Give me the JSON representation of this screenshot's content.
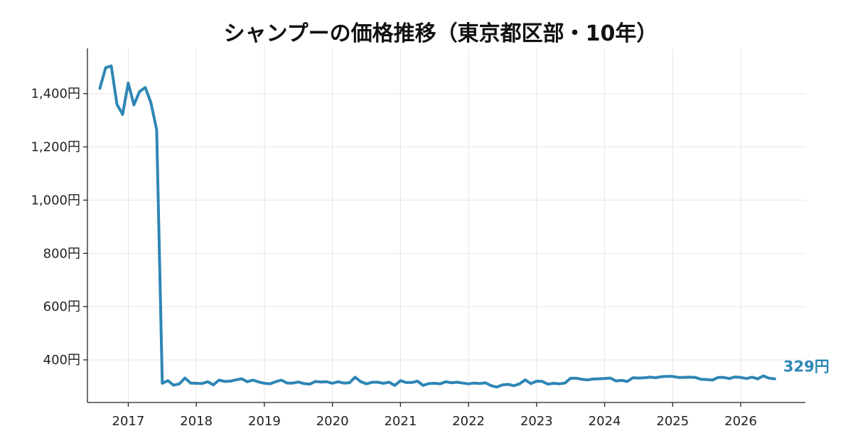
{
  "chart_data": {
    "type": "line",
    "title": "シャンプーの価格推移（東京都区部・10年）",
    "xlabel": "",
    "ylabel": "",
    "xlim": [
      2016.4,
      2026.95
    ],
    "ylim": [
      240,
      1570
    ],
    "x_ticks": [
      2017,
      2018,
      2019,
      2020,
      2021,
      2022,
      2023,
      2024,
      2025,
      2026
    ],
    "x_tick_labels": [
      "2017",
      "2018",
      "2019",
      "2020",
      "2021",
      "2022",
      "2023",
      "2024",
      "2025",
      "2026"
    ],
    "y_ticks": [
      400,
      600,
      800,
      1000,
      1200,
      1400
    ],
    "y_tick_labels": [
      "400円",
      "600円",
      "800円",
      "1,000円",
      "1,200円",
      "1,400円"
    ],
    "grid": true,
    "legend": "none",
    "series": [
      {
        "color": "#2e86b5",
        "end_label": "329円",
        "x": [
          2016.583,
          2016.667,
          2016.75,
          2016.833,
          2016.917,
          2017.0,
          2017.083,
          2017.167,
          2017.25,
          2017.333,
          2017.417,
          2017.5,
          2017.583,
          2017.667,
          2017.75,
          2017.833,
          2017.917,
          2018.0,
          2018.083,
          2018.167,
          2018.25,
          2018.333,
          2018.417,
          2018.5,
          2018.583,
          2018.667,
          2018.75,
          2018.833,
          2018.917,
          2019.0,
          2019.083,
          2019.167,
          2019.25,
          2019.333,
          2019.417,
          2019.5,
          2019.583,
          2019.667,
          2019.75,
          2019.833,
          2019.917,
          2020.0,
          2020.083,
          2020.167,
          2020.25,
          2020.333,
          2020.417,
          2020.5,
          2020.583,
          2020.667,
          2020.75,
          2020.833,
          2020.917,
          2021.0,
          2021.083,
          2021.167,
          2021.25,
          2021.333,
          2021.417,
          2021.5,
          2021.583,
          2021.667,
          2021.75,
          2021.833,
          2021.917,
          2022.0,
          2022.083,
          2022.167,
          2022.25,
          2022.333,
          2022.417,
          2022.5,
          2022.583,
          2022.667,
          2022.75,
          2022.833,
          2022.917,
          2023.0,
          2023.083,
          2023.167,
          2023.25,
          2023.333,
          2023.417,
          2023.5,
          2023.583,
          2023.667,
          2023.75,
          2023.833,
          2023.917,
          2024.0,
          2024.083,
          2024.167,
          2024.25,
          2024.333,
          2024.417,
          2024.5,
          2024.583,
          2024.667,
          2024.75,
          2024.833,
          2024.917,
          2025.0,
          2025.083,
          2025.167,
          2025.25,
          2025.333,
          2025.417,
          2025.5,
          2025.583,
          2025.667,
          2025.75,
          2025.833,
          2025.917,
          2026.0,
          2026.083,
          2026.167,
          2026.25,
          2026.333,
          2026.417,
          2026.5
        ],
        "values": [
          1420,
          1497,
          1504,
          1360,
          1322,
          1440,
          1358,
          1408,
          1423,
          1366,
          1264,
          312,
          322,
          305,
          310,
          332,
          313,
          312,
          311,
          318,
          306,
          324,
          319,
          320,
          325,
          329,
          318,
          324,
          317,
          312,
          310,
          318,
          324,
          313,
          313,
          317,
          311,
          309,
          319,
          317,
          318,
          312,
          318,
          313,
          314,
          335,
          318,
          310,
          316,
          316,
          312,
          316,
          304,
          322,
          315,
          315,
          320,
          304,
          311,
          312,
          310,
          318,
          314,
          316,
          313,
          310,
          313,
          311,
          314,
          303,
          298,
          306,
          308,
          303,
          310,
          325,
          311,
          320,
          319,
          309,
          312,
          310,
          313,
          331,
          331,
          327,
          325,
          328,
          329,
          330,
          332,
          321,
          323,
          319,
          333,
          332,
          333,
          335,
          333,
          337,
          338,
          338,
          334,
          334,
          335,
          334,
          327,
          326,
          324,
          334,
          334,
          330,
          336,
          334,
          330,
          335,
          329,
          340,
          331,
          329
        ]
      }
    ]
  }
}
